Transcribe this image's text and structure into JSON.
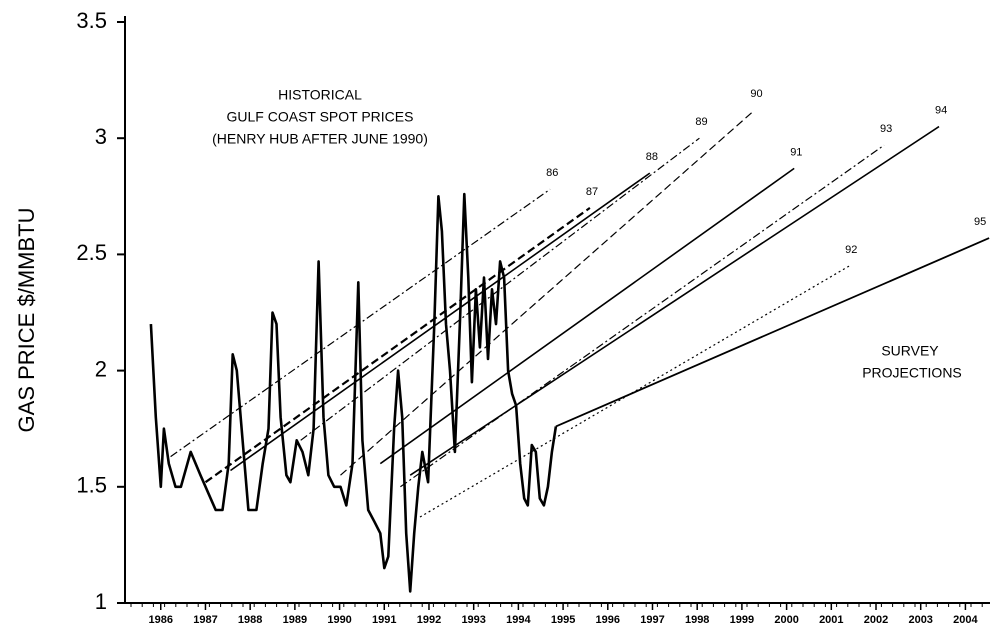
{
  "chart_data": {
    "type": "line",
    "y_label": "GAS PRICE $/MMBTU",
    "annotations": [
      "HISTORICAL",
      "GULF COAST SPOT PRICES",
      "(HENRY HUB AFTER JUNE 1990)",
      "SURVEY",
      "PROJECTIONS"
    ],
    "xlim": [
      1985.2,
      2004.55
    ],
    "ylim": [
      1,
      3.5
    ],
    "xticks": [
      1986,
      1987,
      1988,
      1989,
      1990,
      1991,
      1992,
      1993,
      1994,
      1995,
      1996,
      1997,
      1998,
      1999,
      2000,
      2001,
      2002,
      2003,
      2004
    ],
    "yticks": [
      1,
      1.5,
      2,
      2.5,
      3,
      3.5
    ],
    "grid": false,
    "series": [
      {
        "color": "#000000",
        "style": "solid",
        "width": 2.6,
        "x": [
          1985.78,
          1985.89,
          1986.0,
          1986.07,
          1986.18,
          1986.33,
          1986.45,
          1986.67,
          1986.89,
          1987.23,
          1987.38,
          1987.52,
          1987.61,
          1987.7,
          1987.83,
          1987.96,
          1988.14,
          1988.28,
          1988.41,
          1988.5,
          1988.59,
          1988.68,
          1988.81,
          1988.9,
          1989.04,
          1989.17,
          1989.3,
          1989.42,
          1989.53,
          1989.64,
          1989.75,
          1989.88,
          1990.02,
          1990.15,
          1990.29,
          1990.42,
          1990.51,
          1990.64,
          1990.78,
          1990.91,
          1991.0,
          1991.09,
          1991.22,
          1991.31,
          1991.4,
          1991.49,
          1991.58,
          1991.67,
          1991.76,
          1991.85,
          1991.98,
          1992.12,
          1992.21,
          1992.29,
          1992.38,
          1992.47,
          1992.58,
          1992.7,
          1992.79,
          1992.88,
          1992.96,
          1993.05,
          1993.14,
          1993.23,
          1993.32,
          1993.41,
          1993.5,
          1993.59,
          1993.68,
          1993.77,
          1993.86,
          1993.95,
          1994.04,
          1994.13,
          1994.21,
          1994.3,
          1994.39,
          1994.48,
          1994.57,
          1994.66,
          1994.75,
          1994.84
        ],
        "values": [
          2.2,
          1.8,
          1.5,
          1.75,
          1.6,
          1.5,
          1.5,
          1.65,
          1.55,
          1.4,
          1.4,
          1.6,
          2.07,
          2.0,
          1.7,
          1.4,
          1.4,
          1.6,
          1.75,
          2.25,
          2.2,
          1.8,
          1.55,
          1.52,
          1.7,
          1.65,
          1.55,
          1.75,
          2.47,
          1.8,
          1.55,
          1.5,
          1.5,
          1.42,
          1.6,
          2.38,
          1.7,
          1.4,
          1.35,
          1.3,
          1.15,
          1.2,
          1.75,
          2.0,
          1.8,
          1.3,
          1.05,
          1.3,
          1.5,
          1.65,
          1.52,
          2.2,
          2.75,
          2.6,
          2.2,
          2.0,
          1.65,
          2.25,
          2.76,
          2.4,
          1.95,
          2.35,
          2.1,
          2.4,
          2.05,
          2.35,
          2.2,
          2.47,
          2.4,
          2.0,
          1.9,
          1.85,
          1.6,
          1.45,
          1.42,
          1.68,
          1.65,
          1.45,
          1.42,
          1.5,
          1.65,
          1.76
        ]
      },
      {
        "name": "86",
        "color": "#000000",
        "style": "dashdot",
        "width": 1.2,
        "x": [
          1986.22,
          1994.71
        ],
        "values": [
          1.63,
          2.78
        ]
      },
      {
        "name": "87",
        "color": "#000000",
        "style": "dashed",
        "width": 2.2,
        "x": [
          1987.0,
          1995.6
        ],
        "values": [
          1.52,
          2.7
        ]
      },
      {
        "name": "88",
        "color": "#000000",
        "style": "solid",
        "width": 1.6,
        "x": [
          1987.56,
          1996.94
        ],
        "values": [
          1.57,
          2.85
        ]
      },
      {
        "name": "89",
        "color": "#000000",
        "style": "dashdot",
        "width": 1.2,
        "x": [
          1989.13,
          1998.05
        ],
        "values": [
          1.7,
          3.0
        ]
      },
      {
        "name": "90",
        "color": "#000000",
        "style": "dashed",
        "width": 1.2,
        "x": [
          1990.02,
          1999.28
        ],
        "values": [
          1.55,
          3.12
        ]
      },
      {
        "name": "91",
        "color": "#000000",
        "style": "solid",
        "width": 1.6,
        "x": [
          1990.91,
          2000.17
        ],
        "values": [
          1.6,
          2.87
        ]
      },
      {
        "name": "92",
        "color": "#000000",
        "style": "dotted",
        "width": 1.2,
        "x": [
          1991.8,
          2001.4
        ],
        "values": [
          1.37,
          2.45
        ]
      },
      {
        "name": "93",
        "color": "#000000",
        "style": "dashdot",
        "width": 1.2,
        "x": [
          1991.36,
          2002.18
        ],
        "values": [
          1.5,
          2.97
        ]
      },
      {
        "name": "94",
        "color": "#000000",
        "style": "solid",
        "width": 1.6,
        "x": [
          1991.58,
          2003.41
        ],
        "values": [
          1.55,
          3.05
        ]
      },
      {
        "name": "95",
        "color": "#000000",
        "style": "solid",
        "width": 1.8,
        "x": [
          1994.84,
          2004.53
        ],
        "values": [
          1.76,
          2.57
        ]
      }
    ]
  }
}
